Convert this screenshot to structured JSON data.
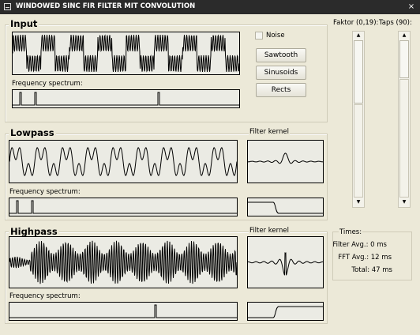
{
  "window": {
    "title": "WINDOWED SINC FIR FILTER MIT CONVOLUTION",
    "close_glyph": "×"
  },
  "input": {
    "title": "Input",
    "freq_label": "Frequency spectrum:",
    "noise_label": "Noise",
    "noise_checked": false,
    "buttons": [
      "Sawtooth",
      "Sinusoids",
      "Rects"
    ]
  },
  "lowpass": {
    "title": "Lowpass",
    "freq_label": "Frequency spectrum:",
    "kernel_label": "Filter kernel"
  },
  "highpass": {
    "title": "Highpass",
    "freq_label": "Frequency spectrum:",
    "kernel_label": "Filter kernel"
  },
  "controls": {
    "faktor_label": "Faktor (0,19):",
    "taps_label": "Taps (90):"
  },
  "times": {
    "title": "Times:",
    "filter_avg": "Filter Avg.: 0 ms",
    "fft_avg": "FFT Avg.: 12 ms",
    "total": "Total: 47 ms"
  },
  "colors": {
    "titlebar": "#2b2b2b",
    "window": "#ece9d8",
    "plot_bg": "#ebebe4",
    "trace": "#000000"
  }
}
